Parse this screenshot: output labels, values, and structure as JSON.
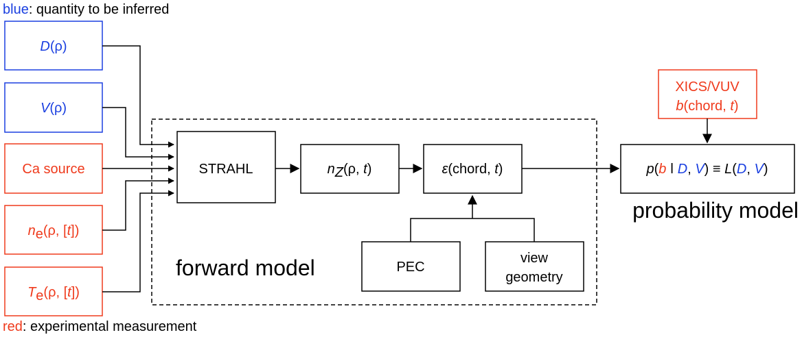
{
  "legend": {
    "blue_word": "blue",
    "blue_text": ": quantity to be inferred",
    "red_word": "red",
    "red_text": ": experimental measurement"
  },
  "colors": {
    "blue": "#1a3fe0",
    "red": "#ef3a1c",
    "black": "#000000"
  },
  "inputs": {
    "D": {
      "sym": "D",
      "rest": "(ρ)"
    },
    "V": {
      "sym": "V",
      "rest": "(ρ)"
    },
    "ca": {
      "label": "Ca source"
    },
    "ne": {
      "sym": "n",
      "sub": "e",
      "open": "(ρ, [",
      "t": "t",
      "close": "])"
    },
    "Te": {
      "sym": "T",
      "sub": "e",
      "open": "(ρ, [",
      "t": "t",
      "close": "])"
    }
  },
  "forward": {
    "label": "forward model",
    "strahl": "STRAHL",
    "nz": {
      "sym": "n",
      "sub": "Z",
      "rest": "(ρ, ",
      "t": "t",
      "close": ")"
    },
    "eps": {
      "sym": "ε",
      "rest": "(chord, ",
      "t": "t",
      "close": ")"
    },
    "pec": "PEC",
    "view": {
      "line1": "view",
      "line2": "geometry"
    }
  },
  "measurement": {
    "line1": "XICS/VUV",
    "b": "b",
    "rest": "(chord, ",
    "t": "t",
    "close": ")"
  },
  "probability": {
    "label": "probability model",
    "p": "p",
    "open": "(",
    "b": "b",
    "bar": " ǀ ",
    "D": "D",
    "comma": ", ",
    "V": "V",
    "close": ") ≡ ",
    "L": "L",
    "open2": "(",
    "D2": "D",
    "comma2": ", ",
    "V2": "V",
    "close2": ")"
  }
}
